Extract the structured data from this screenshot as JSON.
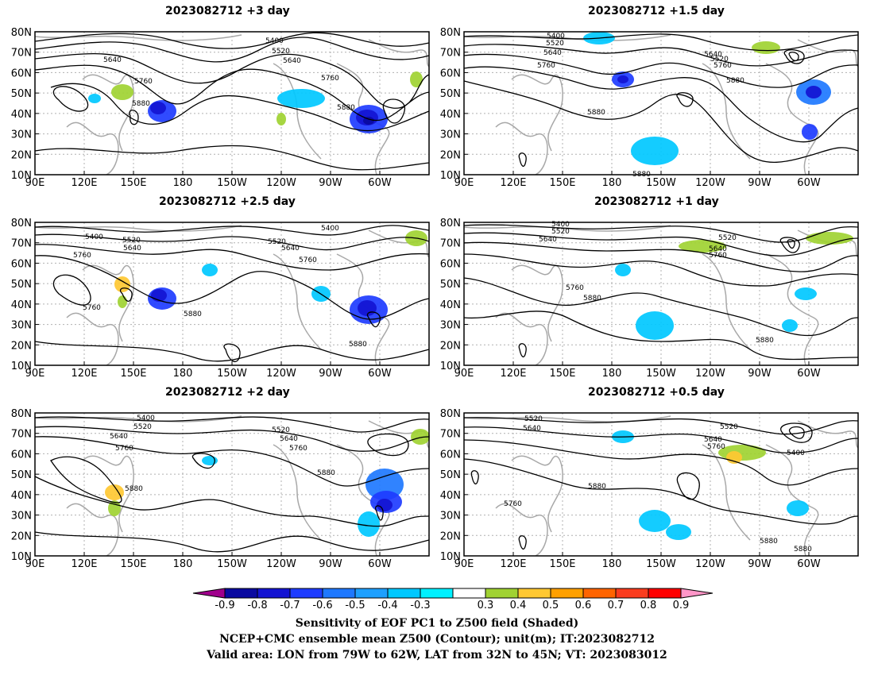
{
  "panels": [
    {
      "id": "p3",
      "title": "2023082712  +3 day",
      "contour_labels": [
        "5400",
        "5520",
        "5640",
        "5640",
        "5760",
        "5760",
        "5880",
        "5880"
      ]
    },
    {
      "id": "p15",
      "title": "2023082712  +1.5 day",
      "contour_labels": [
        "5400",
        "5520",
        "5640",
        "5760",
        "5520",
        "5640",
        "5760",
        "5880",
        "5880",
        "5880"
      ]
    },
    {
      "id": "p25",
      "title": "2023082712  +2.5 day",
      "contour_labels": [
        "5400",
        "5520",
        "5640",
        "5760",
        "5760",
        "5880",
        "5400",
        "5520",
        "5640",
        "5760",
        "5880"
      ]
    },
    {
      "id": "p1",
      "title": "2023082712  +1 day",
      "contour_labels": [
        "5400",
        "5520",
        "5640",
        "5760",
        "5880",
        "5520",
        "5640",
        "5760",
        "5880"
      ]
    },
    {
      "id": "p2",
      "title": "2023082712  +2 day",
      "contour_labels": [
        "5400",
        "5520",
        "5640",
        "5760",
        "5880",
        "5520",
        "5640",
        "5760",
        "5880"
      ]
    },
    {
      "id": "p05",
      "title": "2023082712  +0.5 day",
      "contour_labels": [
        "5520",
        "5640",
        "5880",
        "5760",
        "5520",
        "5640",
        "5760",
        "5400",
        "5880",
        "5880"
      ]
    }
  ],
  "lat_ticks": [
    "80N",
    "70N",
    "60N",
    "50N",
    "40N",
    "30N",
    "20N",
    "10N"
  ],
  "lon_ticks": [
    "90E",
    "120E",
    "150E",
    "180",
    "150W",
    "120W",
    "90W",
    "60W"
  ],
  "colorbar": {
    "ticks": [
      "-0.9",
      "-0.8",
      "-0.7",
      "-0.6",
      "-0.5",
      "-0.4",
      "-0.3",
      "0.3",
      "0.4",
      "0.5",
      "0.6",
      "0.7",
      "0.8",
      "0.9"
    ],
    "colors": [
      "#a0008c",
      "#0a0aa0",
      "#1414d2",
      "#1e3cff",
      "#1e78ff",
      "#1ea0ff",
      "#00c8ff",
      "#00f0ff",
      "#ffffff",
      "#a0d232",
      "#ffc832",
      "#ffa000",
      "#ff6400",
      "#fa3c1e",
      "#ff0000",
      "#ff96c8"
    ]
  },
  "footer": {
    "line1": "Sensitivity of EOF PC1 to Z500 field (Shaded)",
    "line2": "NCEP+CMC ensemble mean Z500 (Contour); unit(m); IT:2023082712",
    "line3": "Valid area: LON from 79W to 62W, LAT from 32N to 45N; VT: 2023083012"
  }
}
